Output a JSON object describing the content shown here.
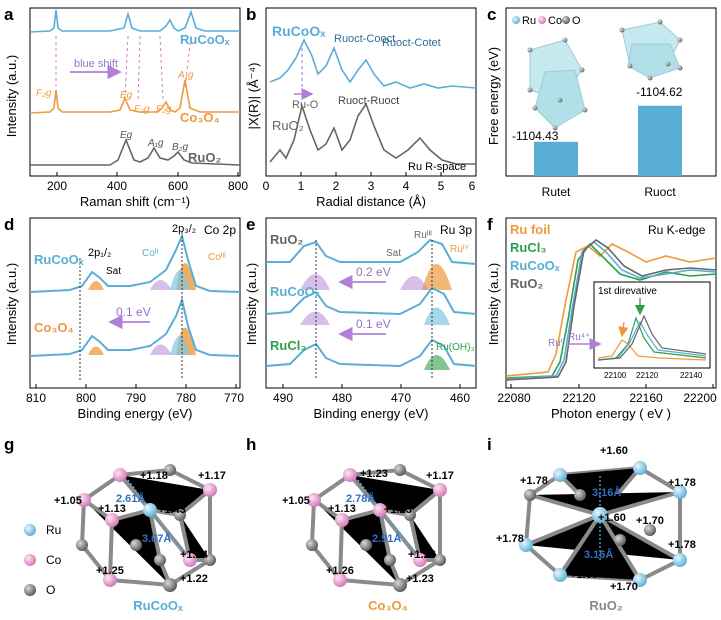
{
  "colors": {
    "blue": "#5aaed6",
    "orange": "#ee9a3c",
    "gray": "#666666",
    "green": "#2e9f49",
    "pink": "#d97fbd",
    "purple": "#9b6fc8"
  },
  "panel_a": {
    "label": "a",
    "xlabel": "Raman shift (cm⁻¹)",
    "ylabel": "Intensity (a.u.)",
    "xticks": [
      "200",
      "400",
      "600",
      "800"
    ],
    "traces": [
      "RuCoOₓ",
      "Co₃O₄",
      "RuO₂"
    ],
    "arrow": "blue shift",
    "peaks": [
      "F₂g",
      "Eg",
      "F₂g",
      "F₂g",
      "A₁g",
      "Eg",
      "A₁g",
      "B₂g"
    ]
  },
  "panel_b": {
    "label": "b",
    "xlabel": "Radial distance (Å)",
    "ylabel": "|X(R)| (Å⁻⁴)",
    "xticks": [
      "0",
      "1",
      "2",
      "3",
      "4",
      "5",
      "6"
    ],
    "traces": [
      "RuCoOₓ",
      "RuO₂"
    ],
    "annotations": [
      "Ru-O",
      "Ruoct-Cooct",
      "Ruoct-Cotet",
      "Ruoct-Ruoct"
    ],
    "note": "Ru R-space"
  },
  "panel_c": {
    "label": "c",
    "ylabel": "Free energy (eV)",
    "legend": [
      "Ru",
      "Co",
      "O"
    ],
    "chart_data": {
      "type": "bar",
      "categories": [
        "Rutet",
        "Ruoct"
      ],
      "values": [
        -1104.43,
        -1104.62
      ],
      "value_labels": [
        "-1104.43",
        "-1104.62"
      ]
    }
  },
  "panel_d": {
    "label": "d",
    "xlabel": "Binding energy (eV)",
    "ylabel": "Intensity (a.u.)",
    "xticks": [
      "810",
      "800",
      "790",
      "780",
      "770"
    ],
    "traces": [
      "RuCoOₓ",
      "Co₃O₄"
    ],
    "note": "Co 2p",
    "annotations": [
      "2p₁/₂",
      "2p₃/₂",
      "Sat",
      "Coᴵᴵ",
      "Coᴵᴵᴵ"
    ],
    "shift": "0.1 eV"
  },
  "panel_e": {
    "label": "e",
    "xlabel": "Binding energy (eV)",
    "ylabel": "Intensity (a.u.)",
    "xticks": [
      "490",
      "480",
      "470",
      "460"
    ],
    "traces": [
      "RuO₂",
      "RuCoOₓ",
      "RuCl₃"
    ],
    "note": "Ru 3p",
    "annotations": [
      "Ruᴵᴵᴵ",
      "Ruᴵⱽ",
      "Sat",
      "Ru(OH)₃"
    ],
    "shifts": [
      "0.2 eV",
      "0.1 eV"
    ]
  },
  "panel_f": {
    "label": "f",
    "xlabel": "Photon energy ( eV )",
    "ylabel": "Intensity (a.u.)",
    "xticks": [
      "22080",
      "22120",
      "22160",
      "22200"
    ],
    "traces": [
      "Ru foil",
      "RuCl₃",
      "RuCoOₓ",
      "RuO₂"
    ],
    "note": "Ru K-edge",
    "inset_title": "1st direvative",
    "inset_ticks": [
      "22100",
      "22120",
      "22140"
    ],
    "valence": [
      "Ru⁰",
      "Ru⁴⁺"
    ]
  },
  "panel_g": {
    "label": "g",
    "caption": "RuCoOₓ",
    "legend": [
      "Ru",
      "Co",
      "O"
    ],
    "charges": [
      "+1.18",
      "+1.17",
      "+1.05",
      "+1.13",
      "+1.43",
      "+1.24",
      "+1.25",
      "+1.22"
    ],
    "distances": [
      "2.61Å",
      "3.07Å"
    ]
  },
  "panel_h": {
    "label": "h",
    "caption": "Co₃O₄",
    "charges": [
      "+1.23",
      "+1.17",
      "+1.05",
      "+1.13",
      "+1.23",
      "+1.25",
      "+1.26",
      "+1.23"
    ],
    "distances": [
      "2.78Å",
      "2.91Å"
    ]
  },
  "panel_i": {
    "label": "i",
    "caption": "RuO₂",
    "charges": [
      "+1.60",
      "+1.78",
      "+1.78",
      "+1.78",
      "+1.78",
      "+1.60",
      "+1.70",
      "+1.60",
      "+1.70"
    ],
    "distances": [
      "3.16Å",
      "3.16Å"
    ]
  }
}
